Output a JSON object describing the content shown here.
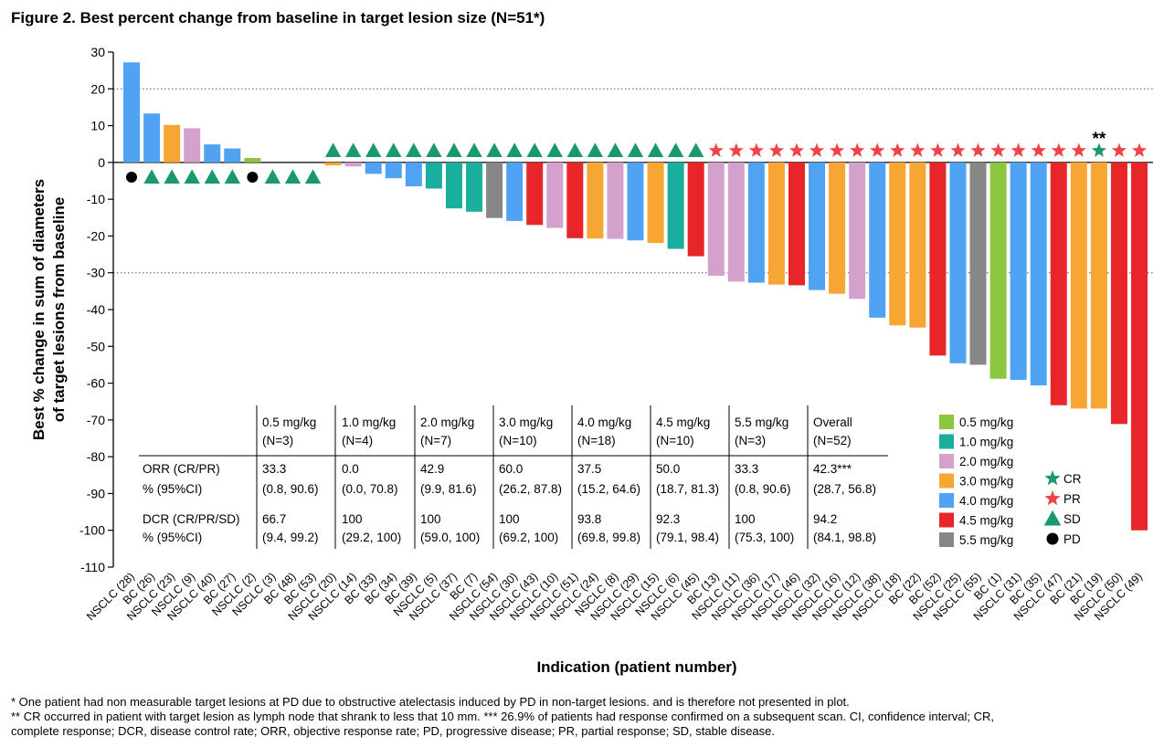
{
  "title": "Figure 2. Best percent change from baseline in target lesion size (N=51*)",
  "footnotes": {
    "line1": "* One patient had non measurable target lesions at PD due to obstructive atelectasis induced by PD in non-target lesions. and is therefore not presented in plot.",
    "line2": "** CR occurred in patient with target lesion as lymph node that shrank to less that 10 mm. *** 26.9% of patients had response confirmed on a subsequent scan. CI, confidence interval; CR,",
    "line3": "complete response; DCR, disease control rate; ORR, objective response rate; PD, progressive disease; PR, partial response; SD, stable disease."
  },
  "colors": {
    "0.5 mg/kg": "#8DC63F",
    "1.0 mg/kg": "#1AAE9F",
    "2.0 mg/kg": "#D4A1CC",
    "3.0 mg/kg": "#F7A533",
    "4.0 mg/kg": "#4FA3F2",
    "4.5 mg/kg": "#E8262A",
    "5.5 mg/kg": "#878787",
    "CR": "#1A9A6C",
    "PR": "#EF4447",
    "SD": "#1A9A6C",
    "PD": "#000000"
  },
  "chart_data": {
    "type": "bar",
    "xlabel": "Indication (patient number)",
    "ylabel_line1": "Best % change in sum of diameters",
    "ylabel_line2": "of target lesions from baseline",
    "ylim": [
      -110,
      30
    ],
    "yticks": [
      30,
      20,
      10,
      0,
      -10,
      -20,
      -30,
      -40,
      -50,
      -60,
      -70,
      -80,
      -90,
      -100,
      -110
    ],
    "reference_lines": [
      20,
      -30
    ],
    "cr_note": "**",
    "categories": [
      "NSCLC (28)",
      "BC (26)",
      "NSCLC (23)",
      "NSCLC (9)",
      "NSCLC (40)",
      "BC (27)",
      "NSCLC (2)",
      "NSCLC (3)",
      "BC (48)",
      "BC (53)",
      "NSCLC (20)",
      "NSCLC (14)",
      "BC (33)",
      "BC (34)",
      "BC (39)",
      "NSCLC (5)",
      "NSCLC (37)",
      "BC (7)",
      "NSCLC (54)",
      "NSCLC (30)",
      "NSCLC (43)",
      "NSCLC (10)",
      "NSCLC (51)",
      "NSCLC (24)",
      "NSCLC (8)",
      "NSCLC (29)",
      "NSCLC (15)",
      "NSCLC (6)",
      "NSCLC (45)",
      "BC (13)",
      "NSCLC (11)",
      "NSCLC (36)",
      "NSCLC (17)",
      "NSCLC (46)",
      "NSCLC (32)",
      "NSCLC (16)",
      "NSCLC (12)",
      "NSCLC (38)",
      "NSCLC (18)",
      "BC (22)",
      "BC (52)",
      "NSCLC (25)",
      "NSCLC (55)",
      "BC (1)",
      "NSCLC (31)",
      "BC (35)",
      "NSCLC (47)",
      "BC (21)",
      "BC (19)",
      "NSCLC (50)",
      "NSCLC (49)"
    ],
    "values": [
      27.2,
      13.3,
      10.2,
      9.3,
      4.9,
      3.8,
      1.2,
      0,
      0,
      0,
      -0.8,
      -1.1,
      -3.1,
      -4.3,
      -6.5,
      -7.1,
      -12.5,
      -13.4,
      -15.1,
      -15.9,
      -17.0,
      -17.8,
      -20.6,
      -20.7,
      -20.8,
      -21.2,
      -21.9,
      -23.5,
      -25.5,
      -30.8,
      -32.4,
      -32.7,
      -33.2,
      -33.4,
      -34.7,
      -35.7,
      -37.1,
      -42.2,
      -44.3,
      -44.9,
      -52.5,
      -54.6,
      -55.0,
      -58.8,
      -59.1,
      -60.6,
      -66.0,
      -66.9,
      -66.9,
      -71.1,
      -100.0
    ],
    "doses": [
      "4.0 mg/kg",
      "4.0 mg/kg",
      "3.0 mg/kg",
      "2.0 mg/kg",
      "4.0 mg/kg",
      "4.0 mg/kg",
      "0.5 mg/kg",
      "4.0 mg/kg",
      "4.0 mg/kg",
      "4.0 mg/kg",
      "3.0 mg/kg",
      "2.0 mg/kg",
      "4.0 mg/kg",
      "4.0 mg/kg",
      "4.0 mg/kg",
      "1.0 mg/kg",
      "1.0 mg/kg",
      "1.0 mg/kg",
      "5.5 mg/kg",
      "4.0 mg/kg",
      "4.5 mg/kg",
      "2.0 mg/kg",
      "4.5 mg/kg",
      "3.0 mg/kg",
      "2.0 mg/kg",
      "4.0 mg/kg",
      "3.0 mg/kg",
      "1.0 mg/kg",
      "4.5 mg/kg",
      "2.0 mg/kg",
      "2.0 mg/kg",
      "4.0 mg/kg",
      "3.0 mg/kg",
      "4.5 mg/kg",
      "4.0 mg/kg",
      "3.0 mg/kg",
      "2.0 mg/kg",
      "4.0 mg/kg",
      "3.0 mg/kg",
      "3.0 mg/kg",
      "4.5 mg/kg",
      "4.0 mg/kg",
      "5.5 mg/kg",
      "0.5 mg/kg",
      "4.0 mg/kg",
      "4.0 mg/kg",
      "4.5 mg/kg",
      "3.0 mg/kg",
      "3.0 mg/kg",
      "4.5 mg/kg",
      "4.5 mg/kg"
    ],
    "responses": [
      "PD",
      "SD",
      "SD",
      "SD",
      "SD",
      "SD",
      "PD",
      "SD",
      "SD",
      "SD",
      "SD",
      "SD",
      "SD",
      "SD",
      "SD",
      "SD",
      "SD",
      "SD",
      "SD",
      "SD",
      "SD",
      "SD",
      "SD",
      "SD",
      "SD",
      "SD",
      "SD",
      "SD",
      "SD",
      "PR",
      "PR",
      "PR",
      "PR",
      "PR",
      "PR",
      "PR",
      "PR",
      "PR",
      "PR",
      "PR",
      "PR",
      "PR",
      "PR",
      "PR",
      "PR",
      "PR",
      "PR",
      "PR",
      "CR",
      "PR",
      "PR"
    ],
    "legend": {
      "doses": [
        "0.5 mg/kg",
        "1.0 mg/kg",
        "2.0 mg/kg",
        "3.0 mg/kg",
        "4.0 mg/kg",
        "4.5 mg/kg",
        "5.5 mg/kg"
      ],
      "responses": [
        "CR",
        "PR",
        "SD",
        "PD"
      ]
    },
    "table": {
      "headers": [
        [
          "0.5 mg/kg",
          "(N=3)"
        ],
        [
          "1.0 mg/kg",
          "(N=4)"
        ],
        [
          "2.0 mg/kg",
          "(N=7)"
        ],
        [
          "3.0 mg/kg",
          "(N=10)"
        ],
        [
          "4.0 mg/kg",
          "(N=18)"
        ],
        [
          "4.5 mg/kg",
          "(N=10)"
        ],
        [
          "5.5 mg/kg",
          "(N=3)"
        ],
        [
          "Overall",
          "(N=52)"
        ]
      ],
      "rows": [
        {
          "label": [
            "ORR (CR/PR)",
            "% (95%CI)"
          ],
          "cells": [
            [
              "33.3",
              "(0.8, 90.6)"
            ],
            [
              "0.0",
              "(0.0, 70.8)"
            ],
            [
              "42.9",
              "(9.9, 81.6)"
            ],
            [
              "60.0",
              "(26.2, 87.8)"
            ],
            [
              "37.5",
              "(15.2, 64.6)"
            ],
            [
              "50.0",
              "(18.7, 81.3)"
            ],
            [
              "33.3",
              "(0.8, 90.6)"
            ],
            [
              "42.3***",
              "(28.7, 56.8)"
            ]
          ]
        },
        {
          "label": [
            "DCR (CR/PR/SD)",
            "% (95%CI)"
          ],
          "cells": [
            [
              "66.7",
              "(9.4, 99.2)"
            ],
            [
              "100",
              "(29.2, 100)"
            ],
            [
              "100",
              "(59.0, 100)"
            ],
            [
              "100",
              "(69.2, 100)"
            ],
            [
              "93.8",
              "(69.8, 99.8)"
            ],
            [
              "92.3",
              "(79.1, 98.4)"
            ],
            [
              "100",
              "(75.3, 100)"
            ],
            [
              "94.2",
              "(84.1, 98.8)"
            ]
          ]
        }
      ]
    }
  }
}
